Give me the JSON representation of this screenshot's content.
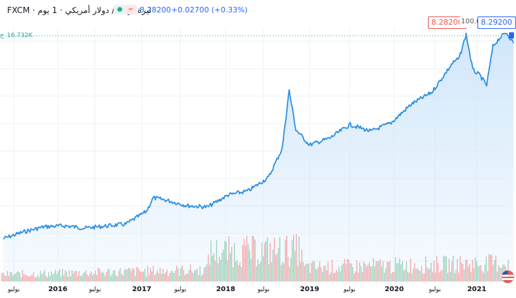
{
  "legend": {
    "title": "ليرة تركية / دولار أمريكي · 1 يوم · FXCM",
    "price": "8.28200",
    "change": "+0.02700 (+0.33%)",
    "volume_prefix": "ح",
    "volume": "16.732K"
  },
  "price_boxes": {
    "bid": "8.28200",
    "spread": "100.0",
    "ask": "8.29200"
  },
  "colors": {
    "line": "#2b8fe0",
    "area": "#cfe6fb",
    "volume_up": "#7fc7a8",
    "volume_down": "#f28f8f",
    "grid": "#eef0f3",
    "price_line": "#6fcfb7"
  },
  "chart_data": {
    "type": "area",
    "title": "",
    "xlabel": "",
    "ylabel": "",
    "x_ticks": [
      "يوليو",
      "2016",
      "يوليو",
      "2017",
      "يوليو",
      "2018",
      "يوليو",
      "2019",
      "يوليو",
      "2020",
      "يوليو",
      "2021"
    ],
    "series": [
      {
        "x": [
          "2015-03",
          "2015-06",
          "2015-09",
          "2015-12",
          "2016-03",
          "2016-06",
          "2016-09",
          "2016-12",
          "2017-01",
          "2017-03",
          "2017-06",
          "2017-09",
          "2017-12",
          "2018-03",
          "2018-06",
          "2018-08",
          "2018-09",
          "2018-10",
          "2018-12",
          "2019-03",
          "2019-06",
          "2019-09",
          "2019-12",
          "2020-03",
          "2020-06",
          "2020-09",
          "2020-10",
          "2020-11",
          "2020-12",
          "2021-01",
          "2021-02",
          "2021-03",
          "2021-04",
          "2021-05",
          "2021-06"
        ],
        "values": [
          2.55,
          2.75,
          2.9,
          2.93,
          2.86,
          2.92,
          2.98,
          3.35,
          3.75,
          3.68,
          3.52,
          3.48,
          3.83,
          3.95,
          4.35,
          5.2,
          6.9,
          5.75,
          5.3,
          5.5,
          5.9,
          5.7,
          5.95,
          6.5,
          6.85,
          7.7,
          7.85,
          8.55,
          7.5,
          7.35,
          7.05,
          8.2,
          8.45,
          8.6,
          8.29
        ]
      }
    ],
    "volume": {
      "unit": "K",
      "note": "volume histogram below price line, green = up, red = down",
      "last_value": 16.732
    }
  }
}
